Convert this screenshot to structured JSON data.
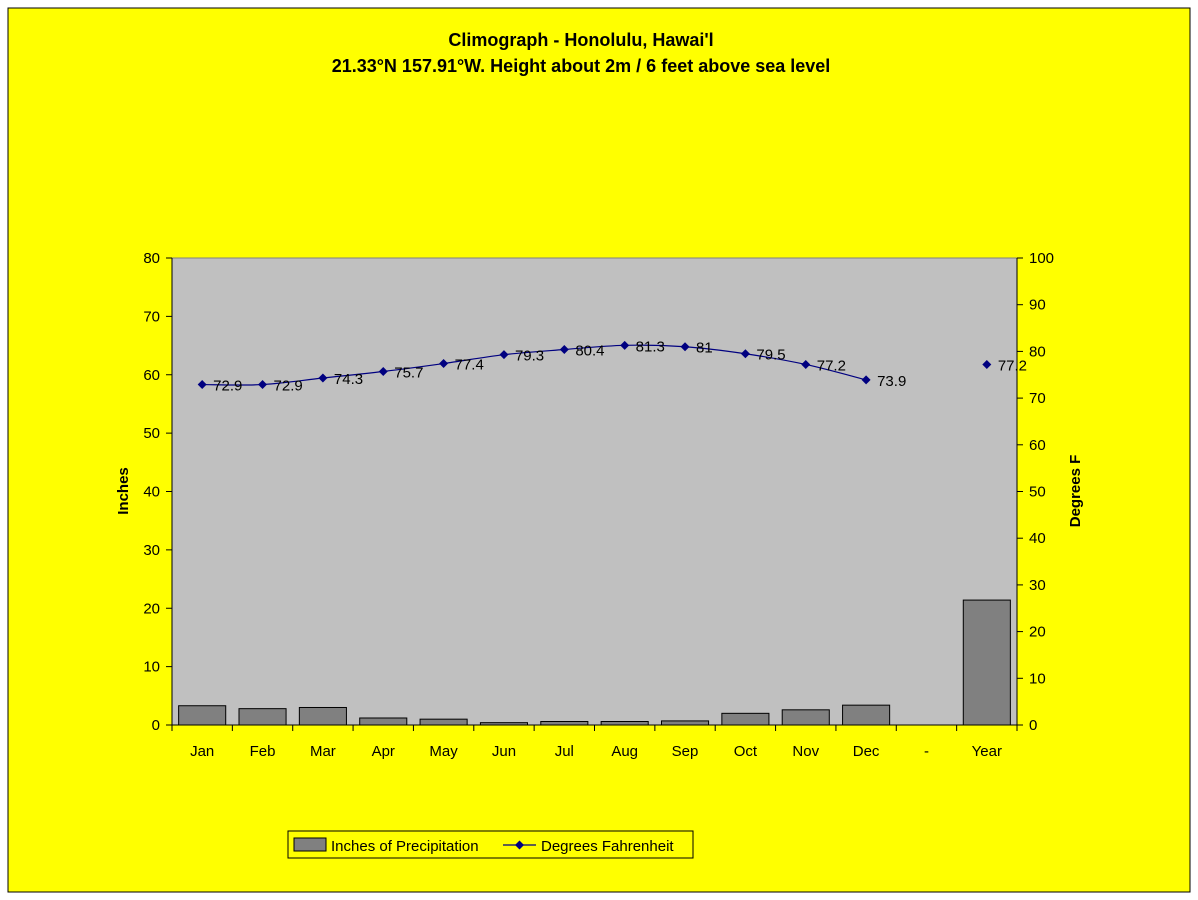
{
  "chart_data": {
    "type": "bar",
    "title": "Climograph - Honolulu, Hawai'l",
    "subtitle": "21.33°N 157.91°W. Height about 2m / 6 feet above sea level",
    "categories": [
      "Jan",
      "Feb",
      "Mar",
      "Apr",
      "May",
      "Jun",
      "Jul",
      "Aug",
      "Sep",
      "Oct",
      "Nov",
      "Dec",
      "-",
      "Year"
    ],
    "series": [
      {
        "name": "Inches of Precipitation",
        "type": "bar",
        "axis": "left",
        "color": "#808080",
        "values": [
          3.3,
          2.8,
          3.0,
          1.2,
          1.0,
          0.4,
          0.6,
          0.6,
          0.7,
          2.0,
          2.6,
          3.4,
          null,
          21.4
        ]
      },
      {
        "name": "Degrees Fahrenheit",
        "type": "line",
        "axis": "right",
        "color": "#000080",
        "values": [
          72.9,
          72.9,
          74.3,
          75.7,
          77.4,
          79.3,
          80.4,
          81.3,
          81,
          79.5,
          77.2,
          73.9,
          null,
          77.2
        ],
        "labels": [
          "72.9",
          "72.9",
          "74.3",
          "75.7",
          "77.4",
          "79.3",
          "80.4",
          "81.3",
          "81",
          "79.5",
          "77.2",
          "73.9",
          "",
          "77.2"
        ]
      }
    ],
    "y_left": {
      "label": "Inches",
      "min": 0,
      "max": 80,
      "ticks": [
        "0",
        "10",
        "20",
        "30",
        "40",
        "50",
        "60",
        "70",
        "80"
      ]
    },
    "y_right": {
      "label": "Degrees F",
      "min": 0,
      "max": 100,
      "ticks": [
        "0",
        "10",
        "20",
        "30",
        "40",
        "50",
        "60",
        "70",
        "80",
        "90",
        "100"
      ]
    },
    "grid": false,
    "legend_position": "bottom-center",
    "colors": {
      "background": "#ffff00",
      "plot_area": "#c0c0c0",
      "bar": "#808080",
      "line": "#000080"
    }
  }
}
